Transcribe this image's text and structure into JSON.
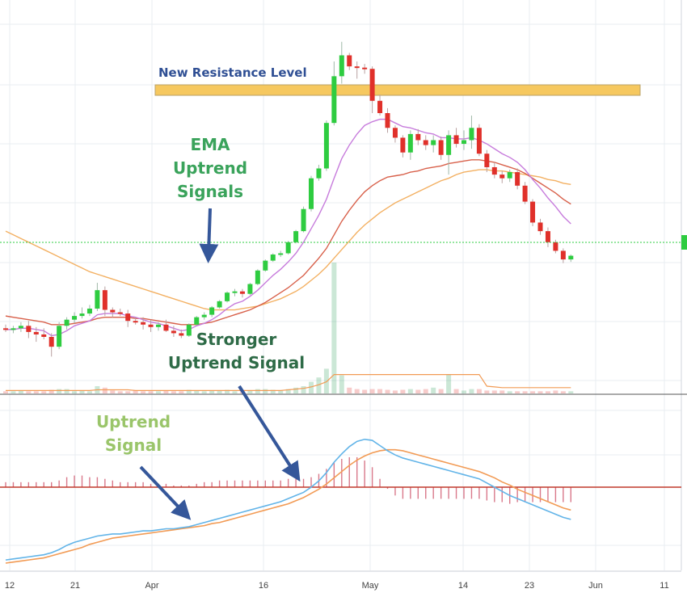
{
  "chart_data": {
    "type": "candlestick",
    "x_ticks": [
      "12",
      "21",
      "Apr",
      "16",
      "May",
      "14",
      "23",
      "Jun",
      "11"
    ],
    "annotations": {
      "resistance": "New Resistance Level",
      "ema_line1": "EMA",
      "ema_line2": "Uptrend",
      "ema_line3": "Signals",
      "stronger_line1": "Stronger",
      "stronger_line2": "Uptrend Signal",
      "uptrend_line1": "Uptrend",
      "uptrend_line2": "Signal"
    },
    "colors": {
      "up": "#2ecc40",
      "down": "#e0302a",
      "ema_fast": "#c77cdc",
      "ema_mid": "#d8604a",
      "ema_slow": "#f3b062",
      "macd": "#62b4e8",
      "signal": "#f29b55",
      "zero_line": "#c0392b",
      "resistance": "#f6c85f",
      "arrow": "#35579a",
      "ema_text": "#3aa35b",
      "stronger_text": "#2e6b47",
      "uptrend_text": "#9ac56a",
      "resistance_text": "#2f4f94"
    },
    "candles": [
      {
        "o": 45.3,
        "h": 45.6,
        "l": 45.0,
        "c": 45.2
      },
      {
        "o": 45.2,
        "h": 45.5,
        "l": 44.9,
        "c": 45.3
      },
      {
        "o": 45.3,
        "h": 45.8,
        "l": 45.0,
        "c": 45.5
      },
      {
        "o": 45.5,
        "h": 45.9,
        "l": 44.5,
        "c": 45.0
      },
      {
        "o": 45.0,
        "h": 45.4,
        "l": 44.2,
        "c": 44.8
      },
      {
        "o": 44.8,
        "h": 45.3,
        "l": 44.4,
        "c": 44.6
      },
      {
        "o": 44.6,
        "h": 44.9,
        "l": 43.0,
        "c": 43.8
      },
      {
        "o": 43.8,
        "h": 45.8,
        "l": 43.6,
        "c": 45.5
      },
      {
        "o": 45.5,
        "h": 46.2,
        "l": 45.2,
        "c": 46.0
      },
      {
        "o": 46.0,
        "h": 46.6,
        "l": 45.7,
        "c": 46.3
      },
      {
        "o": 46.3,
        "h": 47.0,
        "l": 46.1,
        "c": 46.5
      },
      {
        "o": 46.5,
        "h": 47.2,
        "l": 46.3,
        "c": 46.9
      },
      {
        "o": 46.9,
        "h": 49.0,
        "l": 46.7,
        "c": 48.4
      },
      {
        "o": 48.4,
        "h": 48.7,
        "l": 46.3,
        "c": 46.8
      },
      {
        "o": 46.8,
        "h": 47.0,
        "l": 46.2,
        "c": 46.6
      },
      {
        "o": 46.6,
        "h": 46.9,
        "l": 46.3,
        "c": 46.5
      },
      {
        "o": 46.5,
        "h": 46.8,
        "l": 45.4,
        "c": 45.9
      },
      {
        "o": 45.9,
        "h": 46.2,
        "l": 45.6,
        "c": 45.8
      },
      {
        "o": 45.8,
        "h": 46.2,
        "l": 45.2,
        "c": 45.6
      },
      {
        "o": 45.6,
        "h": 46.0,
        "l": 45.0,
        "c": 45.4
      },
      {
        "o": 45.4,
        "h": 45.8,
        "l": 45.1,
        "c": 45.6
      },
      {
        "o": 45.6,
        "h": 46.0,
        "l": 45.0,
        "c": 45.1
      },
      {
        "o": 45.1,
        "h": 45.5,
        "l": 44.6,
        "c": 44.9
      },
      {
        "o": 44.9,
        "h": 45.2,
        "l": 44.5,
        "c": 44.7
      },
      {
        "o": 44.7,
        "h": 45.7,
        "l": 44.6,
        "c": 45.6
      },
      {
        "o": 45.6,
        "h": 46.3,
        "l": 45.5,
        "c": 46.2
      },
      {
        "o": 46.2,
        "h": 46.6,
        "l": 46.0,
        "c": 46.4
      },
      {
        "o": 46.4,
        "h": 47.1,
        "l": 46.2,
        "c": 47.0
      },
      {
        "o": 47.0,
        "h": 47.6,
        "l": 46.9,
        "c": 47.5
      },
      {
        "o": 47.5,
        "h": 48.3,
        "l": 47.4,
        "c": 48.2
      },
      {
        "o": 48.2,
        "h": 48.5,
        "l": 47.9,
        "c": 48.3
      },
      {
        "o": 48.3,
        "h": 48.5,
        "l": 47.8,
        "c": 48.1
      },
      {
        "o": 48.1,
        "h": 49.0,
        "l": 48.0,
        "c": 48.9
      },
      {
        "o": 48.9,
        "h": 50.1,
        "l": 48.8,
        "c": 50.0
      },
      {
        "o": 50.0,
        "h": 50.9,
        "l": 49.9,
        "c": 50.8
      },
      {
        "o": 50.8,
        "h": 51.4,
        "l": 50.7,
        "c": 51.3
      },
      {
        "o": 51.3,
        "h": 51.6,
        "l": 51.1,
        "c": 51.4
      },
      {
        "o": 51.4,
        "h": 52.4,
        "l": 51.3,
        "c": 52.3
      },
      {
        "o": 52.3,
        "h": 53.3,
        "l": 52.2,
        "c": 53.2
      },
      {
        "o": 53.2,
        "h": 55.2,
        "l": 53.1,
        "c": 55.0
      },
      {
        "o": 55.0,
        "h": 57.7,
        "l": 54.8,
        "c": 57.5
      },
      {
        "o": 57.5,
        "h": 58.6,
        "l": 57.3,
        "c": 58.3
      },
      {
        "o": 58.3,
        "h": 62.2,
        "l": 58.1,
        "c": 62.0
      },
      {
        "o": 62.0,
        "h": 67.0,
        "l": 61.8,
        "c": 65.8
      },
      {
        "o": 65.8,
        "h": 68.6,
        "l": 65.2,
        "c": 67.5
      },
      {
        "o": 67.5,
        "h": 67.7,
        "l": 66.3,
        "c": 66.6
      },
      {
        "o": 66.6,
        "h": 67.0,
        "l": 65.6,
        "c": 66.5
      },
      {
        "o": 66.5,
        "h": 66.8,
        "l": 66.0,
        "c": 66.4
      },
      {
        "o": 66.4,
        "h": 66.6,
        "l": 62.8,
        "c": 63.8
      },
      {
        "o": 63.8,
        "h": 64.3,
        "l": 62.6,
        "c": 62.8
      },
      {
        "o": 62.8,
        "h": 63.2,
        "l": 61.2,
        "c": 61.6
      },
      {
        "o": 61.6,
        "h": 61.8,
        "l": 60.4,
        "c": 60.8
      },
      {
        "o": 60.8,
        "h": 61.0,
        "l": 59.2,
        "c": 59.6
      },
      {
        "o": 59.6,
        "h": 61.4,
        "l": 59.0,
        "c": 61.1
      },
      {
        "o": 61.1,
        "h": 61.5,
        "l": 60.2,
        "c": 60.6
      },
      {
        "o": 60.6,
        "h": 61.0,
        "l": 59.8,
        "c": 60.2
      },
      {
        "o": 60.2,
        "h": 61.0,
        "l": 59.6,
        "c": 60.6
      },
      {
        "o": 60.6,
        "h": 60.9,
        "l": 59.0,
        "c": 59.4
      },
      {
        "o": 59.4,
        "h": 61.4,
        "l": 57.8,
        "c": 61.0
      },
      {
        "o": 61.0,
        "h": 61.6,
        "l": 60.0,
        "c": 60.3
      },
      {
        "o": 60.3,
        "h": 61.4,
        "l": 59.8,
        "c": 60.6
      },
      {
        "o": 60.6,
        "h": 62.6,
        "l": 59.9,
        "c": 61.6
      },
      {
        "o": 61.6,
        "h": 61.9,
        "l": 59.3,
        "c": 59.5
      },
      {
        "o": 59.5,
        "h": 59.8,
        "l": 58.0,
        "c": 58.4
      },
      {
        "o": 58.4,
        "h": 58.8,
        "l": 57.5,
        "c": 57.8
      },
      {
        "o": 57.8,
        "h": 58.1,
        "l": 57.1,
        "c": 57.5
      },
      {
        "o": 57.5,
        "h": 58.2,
        "l": 57.2,
        "c": 58.0
      },
      {
        "o": 58.0,
        "h": 58.3,
        "l": 56.6,
        "c": 56.9
      },
      {
        "o": 56.9,
        "h": 57.2,
        "l": 55.4,
        "c": 55.6
      },
      {
        "o": 55.6,
        "h": 55.8,
        "l": 53.6,
        "c": 53.9
      },
      {
        "o": 53.9,
        "h": 54.2,
        "l": 52.9,
        "c": 53.2
      },
      {
        "o": 53.2,
        "h": 53.5,
        "l": 51.9,
        "c": 52.3
      },
      {
        "o": 52.3,
        "h": 52.5,
        "l": 51.4,
        "c": 51.6
      },
      {
        "o": 51.6,
        "h": 51.8,
        "l": 50.6,
        "c": 50.9
      },
      {
        "o": 50.9,
        "h": 51.3,
        "l": 50.7,
        "c": 51.2
      }
    ],
    "ema_fast": [
      45.2,
      45.2,
      45.3,
      45.3,
      45.2,
      45.1,
      44.7,
      44.8,
      45.1,
      45.5,
      45.7,
      45.9,
      46.4,
      46.5,
      46.5,
      46.5,
      46.3,
      46.2,
      46.0,
      45.8,
      45.7,
      45.5,
      45.3,
      45.1,
      45.2,
      45.5,
      45.7,
      46.0,
      46.4,
      46.9,
      47.3,
      47.5,
      47.9,
      48.4,
      49.0,
      49.6,
      50.1,
      50.7,
      51.4,
      52.3,
      53.4,
      54.5,
      55.8,
      57.5,
      59.1,
      60.2,
      61.1,
      61.8,
      62.1,
      62.3,
      62.3,
      62.0,
      61.7,
      61.6,
      61.4,
      61.2,
      61.1,
      60.8,
      60.8,
      60.7,
      60.7,
      60.8,
      60.6,
      60.3,
      59.9,
      59.5,
      59.2,
      58.8,
      58.2,
      57.4,
      56.7,
      55.9,
      55.2,
      54.4,
      53.8
    ],
    "ema_mid": [
      46.3,
      46.2,
      46.1,
      46.0,
      45.9,
      45.8,
      45.6,
      45.6,
      45.6,
      45.7,
      45.8,
      45.9,
      46.1,
      46.2,
      46.2,
      46.2,
      46.2,
      46.1,
      46.1,
      46.0,
      45.9,
      45.8,
      45.7,
      45.6,
      45.6,
      45.6,
      45.7,
      45.8,
      46.0,
      46.2,
      46.4,
      46.6,
      46.8,
      47.1,
      47.4,
      47.8,
      48.2,
      48.6,
      49.1,
      49.6,
      50.3,
      51.0,
      51.8,
      52.9,
      54.0,
      54.9,
      55.7,
      56.4,
      56.9,
      57.3,
      57.6,
      57.7,
      57.8,
      58.0,
      58.1,
      58.3,
      58.4,
      58.5,
      58.7,
      58.8,
      58.9,
      59.0,
      59.0,
      58.9,
      58.8,
      58.6,
      58.4,
      58.2,
      57.9,
      57.5,
      57.1,
      56.7,
      56.3,
      55.8,
      55.4
    ],
    "ema_slow": [
      53.2,
      52.9,
      52.6,
      52.3,
      52.0,
      51.7,
      51.4,
      51.1,
      50.8,
      50.5,
      50.2,
      49.9,
      49.7,
      49.5,
      49.3,
      49.1,
      48.9,
      48.7,
      48.5,
      48.3,
      48.1,
      47.9,
      47.7,
      47.5,
      47.3,
      47.1,
      46.9,
      46.8,
      46.8,
      46.8,
      46.8,
      46.9,
      47.0,
      47.1,
      47.3,
      47.5,
      47.7,
      48.0,
      48.3,
      48.7,
      49.2,
      49.7,
      50.3,
      51.0,
      51.7,
      52.4,
      53.1,
      53.7,
      54.2,
      54.7,
      55.1,
      55.5,
      55.8,
      56.1,
      56.4,
      56.7,
      57.0,
      57.3,
      57.5,
      57.8,
      58.0,
      58.1,
      58.2,
      58.2,
      58.1,
      58.1,
      58.0,
      57.9,
      57.8,
      57.7,
      57.6,
      57.4,
      57.3,
      57.1,
      57.0
    ],
    "current_price": 51.2,
    "y_range": [
      40,
      72
    ],
    "volume": [
      0.3,
      0.3,
      0.4,
      0.3,
      0.3,
      0.3,
      0.5,
      0.6,
      0.6,
      0.3,
      0.4,
      0.3,
      1.0,
      0.8,
      0.4,
      0.3,
      0.3,
      0.4,
      0.3,
      0.3,
      0.3,
      0.4,
      0.3,
      0.3,
      0.5,
      0.4,
      0.3,
      0.4,
      0.4,
      0.5,
      0.3,
      0.3,
      0.4,
      0.6,
      0.6,
      0.5,
      0.4,
      0.6,
      0.8,
      1.0,
      1.6,
      2.2,
      3.4,
      18.0,
      2.5,
      0.8,
      0.6,
      0.5,
      0.6,
      0.6,
      0.5,
      0.4,
      0.5,
      0.6,
      0.5,
      0.6,
      0.8,
      0.6,
      2.6,
      0.6,
      0.4,
      0.6,
      0.6,
      0.4,
      0.4,
      0.4,
      0.3,
      0.3,
      0.3,
      0.3,
      0.3,
      0.3,
      0.4,
      0.3,
      0.3
    ],
    "volume_ma": [
      0.4,
      0.4,
      0.4,
      0.4,
      0.4,
      0.4,
      0.4,
      0.4,
      0.4,
      0.4,
      0.4,
      0.4,
      0.5,
      0.5,
      0.5,
      0.5,
      0.5,
      0.4,
      0.4,
      0.4,
      0.4,
      0.4,
      0.4,
      0.4,
      0.4,
      0.4,
      0.4,
      0.4,
      0.4,
      0.4,
      0.4,
      0.4,
      0.4,
      0.4,
      0.4,
      0.4,
      0.4,
      0.5,
      0.6,
      0.7,
      0.9,
      1.2,
      1.6,
      2.6,
      2.6,
      2.6,
      2.6,
      2.6,
      2.6,
      2.6,
      2.6,
      2.6,
      2.6,
      2.6,
      2.6,
      2.6,
      2.6,
      2.6,
      2.6,
      2.6,
      2.6,
      2.6,
      2.6,
      1.0,
      0.9,
      0.8,
      0.8,
      0.8,
      0.8,
      0.8,
      0.8,
      0.8,
      0.8,
      0.8,
      0.8
    ],
    "macd": [
      -7.0,
      -6.9,
      -6.8,
      -6.7,
      -6.6,
      -6.5,
      -6.3,
      -6.0,
      -5.6,
      -5.3,
      -5.1,
      -4.9,
      -4.7,
      -4.6,
      -4.5,
      -4.5,
      -4.4,
      -4.3,
      -4.2,
      -4.2,
      -4.1,
      -4.0,
      -4.0,
      -3.9,
      -3.8,
      -3.6,
      -3.4,
      -3.2,
      -3.0,
      -2.8,
      -2.6,
      -2.4,
      -2.2,
      -2.0,
      -1.8,
      -1.6,
      -1.4,
      -1.1,
      -0.8,
      -0.5,
      0.0,
      0.6,
      1.4,
      2.4,
      3.2,
      3.9,
      4.4,
      4.6,
      4.5,
      4.0,
      3.5,
      3.1,
      2.8,
      2.6,
      2.4,
      2.2,
      2.0,
      1.8,
      1.6,
      1.4,
      1.2,
      1.0,
      0.8,
      0.4,
      0.0,
      -0.4,
      -0.8,
      -1.1,
      -1.4,
      -1.7,
      -2.0,
      -2.3,
      -2.6,
      -2.9,
      -3.1
    ],
    "signal": [
      -7.3,
      -7.2,
      -7.1,
      -7.0,
      -6.9,
      -6.8,
      -6.6,
      -6.4,
      -6.2,
      -6.0,
      -5.8,
      -5.5,
      -5.3,
      -5.1,
      -4.9,
      -4.8,
      -4.7,
      -4.6,
      -4.5,
      -4.4,
      -4.3,
      -4.2,
      -4.1,
      -4.0,
      -3.9,
      -3.8,
      -3.7,
      -3.5,
      -3.4,
      -3.2,
      -3.0,
      -2.8,
      -2.6,
      -2.4,
      -2.2,
      -2.0,
      -1.8,
      -1.6,
      -1.3,
      -1.0,
      -0.6,
      -0.2,
      0.3,
      0.9,
      1.5,
      2.1,
      2.6,
      3.0,
      3.3,
      3.5,
      3.6,
      3.6,
      3.5,
      3.3,
      3.1,
      2.9,
      2.7,
      2.5,
      2.3,
      2.1,
      1.9,
      1.7,
      1.5,
      1.2,
      0.9,
      0.5,
      0.2,
      -0.2,
      -0.5,
      -0.8,
      -1.1,
      -1.4,
      -1.7,
      -2.0,
      -2.2
    ],
    "macd_range": [
      -8,
      8
    ]
  }
}
